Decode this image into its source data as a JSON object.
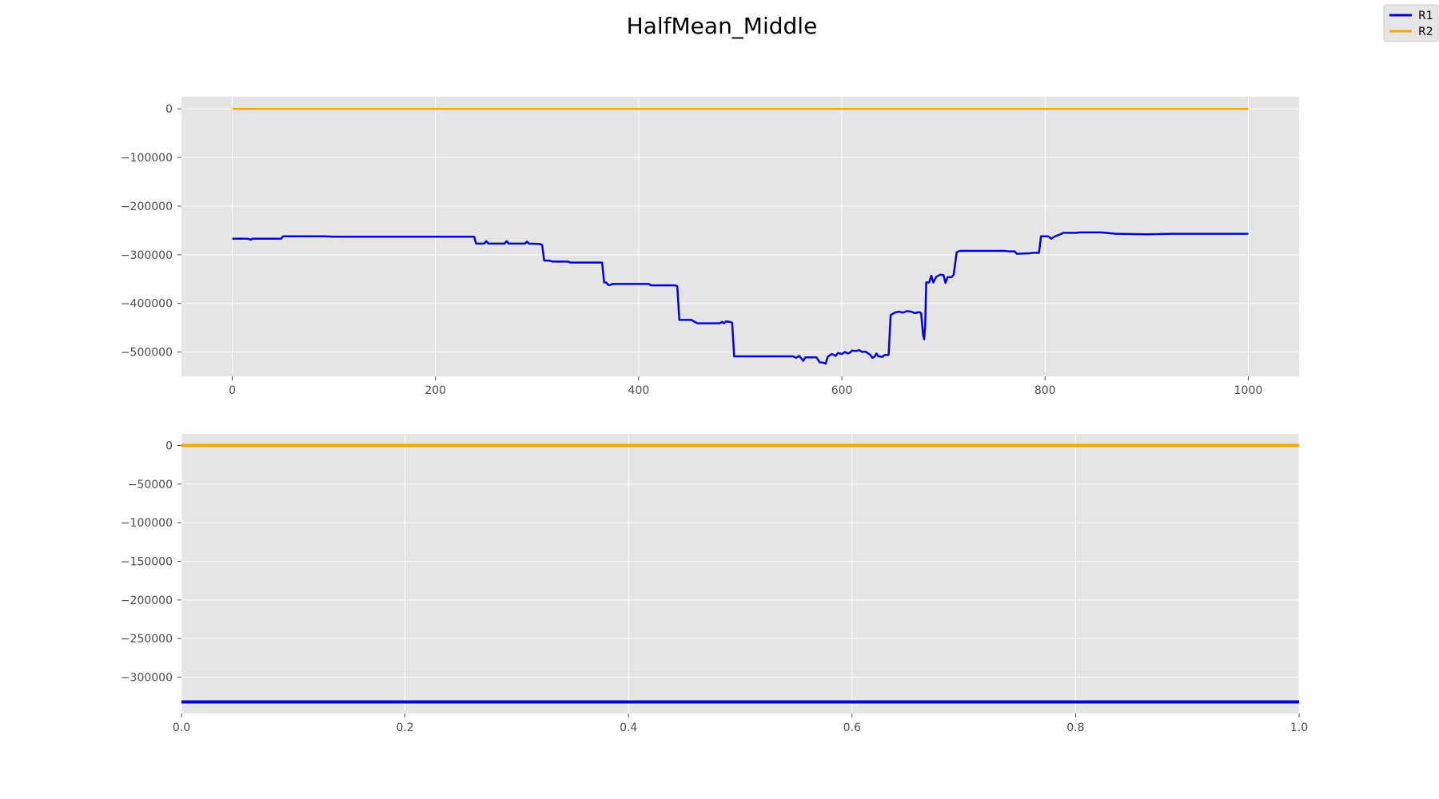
{
  "title": "HalfMean_Middle",
  "colors": {
    "R1": "#0000dd",
    "R2": "#ffa500",
    "axes_bg": "#e5e5e5",
    "grid": "#ffffff",
    "tick_text": "#4d4d4d"
  },
  "legend": {
    "position": "top-right",
    "entries": [
      {
        "label": "R1",
        "color": "#0000dd"
      },
      {
        "label": "R2",
        "color": "#ffa500"
      }
    ]
  },
  "chart_data": [
    {
      "type": "line",
      "title": "",
      "xlabel": "",
      "ylabel": "",
      "xlim": [
        -50,
        1050
      ],
      "ylim": [
        -550000,
        25000
      ],
      "grid": true,
      "xticks": [
        0,
        200,
        400,
        600,
        800,
        1000
      ],
      "xtick_labels": [
        "0",
        "200",
        "400",
        "600",
        "800",
        "1000"
      ],
      "yticks": [
        0,
        -100000,
        -200000,
        -300000,
        -400000,
        -500000
      ],
      "ytick_labels": [
        "0",
        "−100000",
        "−200000",
        "−300000",
        "−400000",
        "−500000"
      ],
      "series": [
        {
          "name": "R1",
          "color": "#0000dd",
          "points": [
            [
              0,
              -267000
            ],
            [
              15,
              -267000
            ],
            [
              18,
              -269000
            ],
            [
              20,
              -267000
            ],
            [
              48,
              -267000
            ],
            [
              50,
              -262000
            ],
            [
              90,
              -262000
            ],
            [
              100,
              -263000
            ],
            [
              150,
              -263000
            ],
            [
              238,
              -263000
            ],
            [
              240,
              -277000
            ],
            [
              248,
              -277000
            ],
            [
              250,
              -272000
            ],
            [
              252,
              -277000
            ],
            [
              268,
              -277000
            ],
            [
              270,
              -272000
            ],
            [
              272,
              -277000
            ],
            [
              288,
              -277000
            ],
            [
              290,
              -273000
            ],
            [
              292,
              -277000
            ],
            [
              303,
              -278000
            ],
            [
              305,
              -280000
            ],
            [
              307,
              -312000
            ],
            [
              312,
              -312000
            ],
            [
              315,
              -314000
            ],
            [
              330,
              -314000
            ],
            [
              333,
              -316000
            ],
            [
              364,
              -316000
            ],
            [
              366,
              -357000
            ],
            [
              368,
              -357000
            ],
            [
              370,
              -362000
            ],
            [
              372,
              -362000
            ],
            [
              375,
              -360000
            ],
            [
              410,
              -360000
            ],
            [
              412,
              -363000
            ],
            [
              436,
              -363000
            ],
            [
              438,
              -365000
            ],
            [
              440,
              -434000
            ],
            [
              452,
              -434000
            ],
            [
              455,
              -438000
            ],
            [
              458,
              -441000
            ],
            [
              470,
              -441000
            ],
            [
              480,
              -441000
            ],
            [
              482,
              -438000
            ],
            [
              484,
              -441000
            ],
            [
              486,
              -437000
            ],
            [
              490,
              -438000
            ],
            [
              492,
              -440000
            ],
            [
              494,
              -509000
            ],
            [
              552,
              -509000
            ],
            [
              555,
              -512000
            ],
            [
              558,
              -508000
            ],
            [
              560,
              -513000
            ],
            [
              562,
              -518000
            ],
            [
              564,
              -511000
            ],
            [
              575,
              -511000
            ],
            [
              578,
              -521000
            ],
            [
              582,
              -522000
            ],
            [
              584,
              -524000
            ],
            [
              586,
              -510000
            ],
            [
              590,
              -504000
            ],
            [
              594,
              -508000
            ],
            [
              596,
              -502000
            ],
            [
              600,
              -504000
            ],
            [
              603,
              -500000
            ],
            [
              606,
              -503000
            ],
            [
              608,
              -501000
            ],
            [
              610,
              -497000
            ],
            [
              614,
              -498000
            ],
            [
              617,
              -496000
            ],
            [
              620,
              -500000
            ],
            [
              623,
              -499000
            ],
            [
              626,
              -503000
            ],
            [
              628,
              -506000
            ],
            [
              630,
              -512000
            ],
            [
              632,
              -510000
            ],
            [
              634,
              -503000
            ],
            [
              636,
              -509000
            ],
            [
              640,
              -510000
            ],
            [
              642,
              -506000
            ],
            [
              646,
              -506000
            ],
            [
              648,
              -424000
            ],
            [
              652,
              -419000
            ],
            [
              656,
              -417000
            ],
            [
              660,
              -419000
            ],
            [
              664,
              -416000
            ],
            [
              668,
              -417000
            ],
            [
              672,
              -420000
            ],
            [
              676,
              -418000
            ],
            [
              678,
              -420000
            ],
            [
              680,
              -466000
            ],
            [
              681,
              -474000
            ],
            [
              682,
              -445000
            ],
            [
              683,
              -357000
            ],
            [
              686,
              -357000
            ],
            [
              688,
              -343000
            ],
            [
              690,
              -357000
            ],
            [
              693,
              -345000
            ],
            [
              697,
              -341000
            ],
            [
              700,
              -342000
            ],
            [
              702,
              -358000
            ],
            [
              704,
              -346000
            ],
            [
              708,
              -346000
            ],
            [
              710,
              -341000
            ],
            [
              713,
              -295000
            ],
            [
              716,
              -292000
            ],
            [
              760,
              -292000
            ],
            [
              764,
              -293000
            ],
            [
              770,
              -293000
            ],
            [
              772,
              -298000
            ],
            [
              785,
              -297000
            ],
            [
              789,
              -296000
            ],
            [
              794,
              -296000
            ],
            [
              796,
              -262000
            ],
            [
              803,
              -262000
            ],
            [
              806,
              -267000
            ],
            [
              810,
              -262000
            ],
            [
              815,
              -258000
            ],
            [
              818,
              -255000
            ],
            [
              830,
              -255000
            ],
            [
              835,
              -254000
            ],
            [
              855,
              -254000
            ],
            [
              870,
              -257000
            ],
            [
              900,
              -258000
            ],
            [
              925,
              -257000
            ],
            [
              1000,
              -257000
            ]
          ]
        },
        {
          "name": "R2",
          "color": "#ffa500",
          "points": [
            [
              0,
              0
            ],
            [
              1000,
              0
            ]
          ]
        }
      ]
    },
    {
      "type": "line",
      "title": "",
      "xlabel": "",
      "ylabel": "",
      "xlim": [
        0,
        1
      ],
      "ylim": [
        -347000,
        15000
      ],
      "grid": true,
      "xticks": [
        0,
        0.2,
        0.4,
        0.6,
        0.8,
        1.0
      ],
      "xtick_labels": [
        "0.0",
        "0.2",
        "0.4",
        "0.6",
        "0.8",
        "1.0"
      ],
      "yticks": [
        0,
        -50000,
        -100000,
        -150000,
        -200000,
        -250000,
        -300000
      ],
      "ytick_labels": [
        "0",
        "−50000",
        "−100000",
        "−150000",
        "−200000",
        "−250000",
        "−300000"
      ],
      "series": [
        {
          "name": "R1",
          "color": "#0000dd",
          "points": [
            [
              0,
              -332000
            ],
            [
              1,
              -332000
            ]
          ]
        },
        {
          "name": "R2",
          "color": "#ffa500",
          "points": [
            [
              0,
              0
            ],
            [
              1,
              0
            ]
          ]
        }
      ]
    }
  ]
}
